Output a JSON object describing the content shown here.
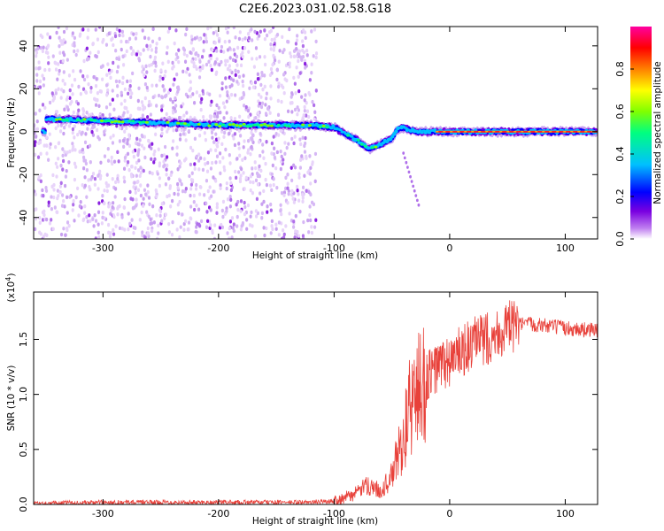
{
  "figure": {
    "title": "C2E6.2023.031.02.58.G18"
  },
  "chart_data": [
    {
      "type": "heatmap",
      "xlabel": "Height of straight line (km)",
      "ylabel": "Frequency (Hz)",
      "xlim": [
        -360,
        128
      ],
      "ylim": [
        -50,
        49
      ],
      "xticks": [
        -300,
        -200,
        -100,
        0,
        100
      ],
      "yticks": [
        40,
        20,
        0,
        -20,
        -40
      ],
      "ridge": {
        "x": [
          -350,
          -300,
          -250,
          -200,
          -150,
          -120,
          -100,
          -90,
          -80,
          -70,
          -60,
          -50,
          -45,
          -40,
          -30,
          -20,
          0,
          50,
          100,
          128
        ],
        "y": [
          6,
          5,
          4,
          3,
          3,
          3,
          2,
          -1,
          -4,
          -8,
          -6,
          -3,
          1,
          2,
          0,
          0,
          0,
          0,
          0,
          0
        ]
      },
      "colorbar": {
        "label": "Normalized spectral amplitude",
        "ticks": [
          0.0,
          0.2,
          0.4,
          0.6,
          0.8
        ],
        "colors": [
          "#ffffff",
          "#c080f0",
          "#7a00e0",
          "#0000ff",
          "#00c0ff",
          "#00ff80",
          "#80ff00",
          "#ffff00",
          "#ff8000",
          "#ff0000",
          "#ff00a0"
        ]
      }
    },
    {
      "type": "line",
      "xlabel": "Height of straight line (km)",
      "ylabel": "SNR (10 * v/v)",
      "yscale_label": "(x10",
      "yscale_exp": "4",
      "yscale_close": ")",
      "xlim": [
        -360,
        128
      ],
      "ylim": [
        0,
        1.93
      ],
      "xticks": [
        -300,
        -200,
        -100,
        0,
        100
      ],
      "yticks": [
        0.0,
        0.5,
        1.0,
        1.5
      ],
      "ytick_labels": [
        "0.0",
        "0.5",
        "1.0",
        "1.5"
      ],
      "line_color": "#e8413a",
      "series": [
        {
          "x": [
            -360,
            -300,
            -200,
            -120,
            -100,
            -85,
            -70,
            -60,
            -50,
            -45,
            -40,
            -35,
            -30,
            -25,
            -20,
            -15,
            -10,
            0,
            10,
            20,
            30,
            40,
            50,
            60,
            70,
            80,
            100,
            128
          ],
          "y": [
            0.01,
            0.02,
            0.02,
            0.02,
            0.03,
            0.08,
            0.18,
            0.12,
            0.25,
            0.45,
            0.6,
            0.85,
            1.0,
            1.05,
            1.15,
            1.2,
            1.25,
            1.3,
            1.38,
            1.45,
            1.5,
            1.55,
            1.6,
            1.63,
            1.64,
            1.63,
            1.6,
            1.58
          ]
        }
      ]
    }
  ]
}
